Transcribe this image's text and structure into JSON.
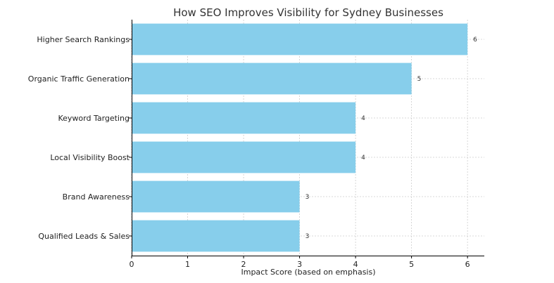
{
  "chart_data": {
    "type": "bar",
    "orientation": "horizontal",
    "title": "How SEO Improves Visibility for Sydney Businesses",
    "xlabel": "Impact Score (based on emphasis)",
    "ylabel": "",
    "categories": [
      "Higher Search Rankings",
      "Organic Traffic Generation",
      "Keyword Targeting",
      "Local Visibility Boost",
      "Brand Awareness",
      "Qualified Leads & Sales"
    ],
    "values": [
      6,
      5,
      4,
      4,
      3,
      3
    ],
    "xticks": [
      0,
      1,
      2,
      3,
      4,
      5,
      6
    ],
    "xlim": [
      0,
      6.3
    ],
    "grid": true,
    "bar_color": "#87ceeb"
  }
}
